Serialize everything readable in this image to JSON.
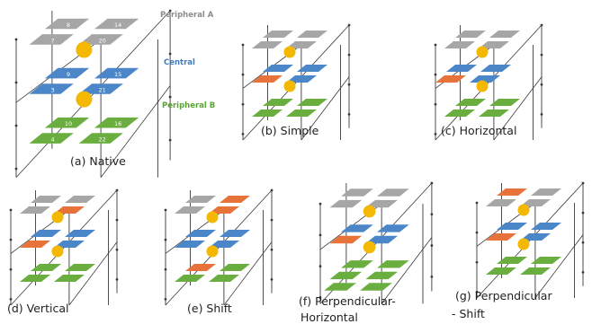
{
  "native": {
    "labels": {
      "peripheral_a": "Peripheral A",
      "central": "Central",
      "peripheral_b": "Peripheral B"
    },
    "tile_numbers": {
      "top": [
        "8",
        "14",
        "7",
        "20"
      ],
      "middle": [
        "9",
        "15",
        "3",
        "21"
      ],
      "bottom": [
        "10",
        "16",
        "4",
        "22"
      ]
    },
    "caption": "(a) Native"
  },
  "captions": {
    "b": "(b) Simple",
    "c": "(c) Horizontal",
    "d": "(d)  Vertical",
    "e": "(e)  Shift",
    "f_line1": "(f)  Perpendicular-",
    "f_line2": "Horizontal",
    "g_line1": "(g)        Perpendicular",
    "g_line2": "- Shift"
  },
  "colors": {
    "peripheral_a": "#a6a6a6",
    "central": "#4a86c8",
    "peripheral_b": "#6aae3f",
    "changed": "#e8733a",
    "node": "#f5b800",
    "label_gray": "#8c8c8c",
    "label_blue": "#3d7cc0",
    "label_green": "#59a332",
    "frame": "#3a3a3a"
  }
}
